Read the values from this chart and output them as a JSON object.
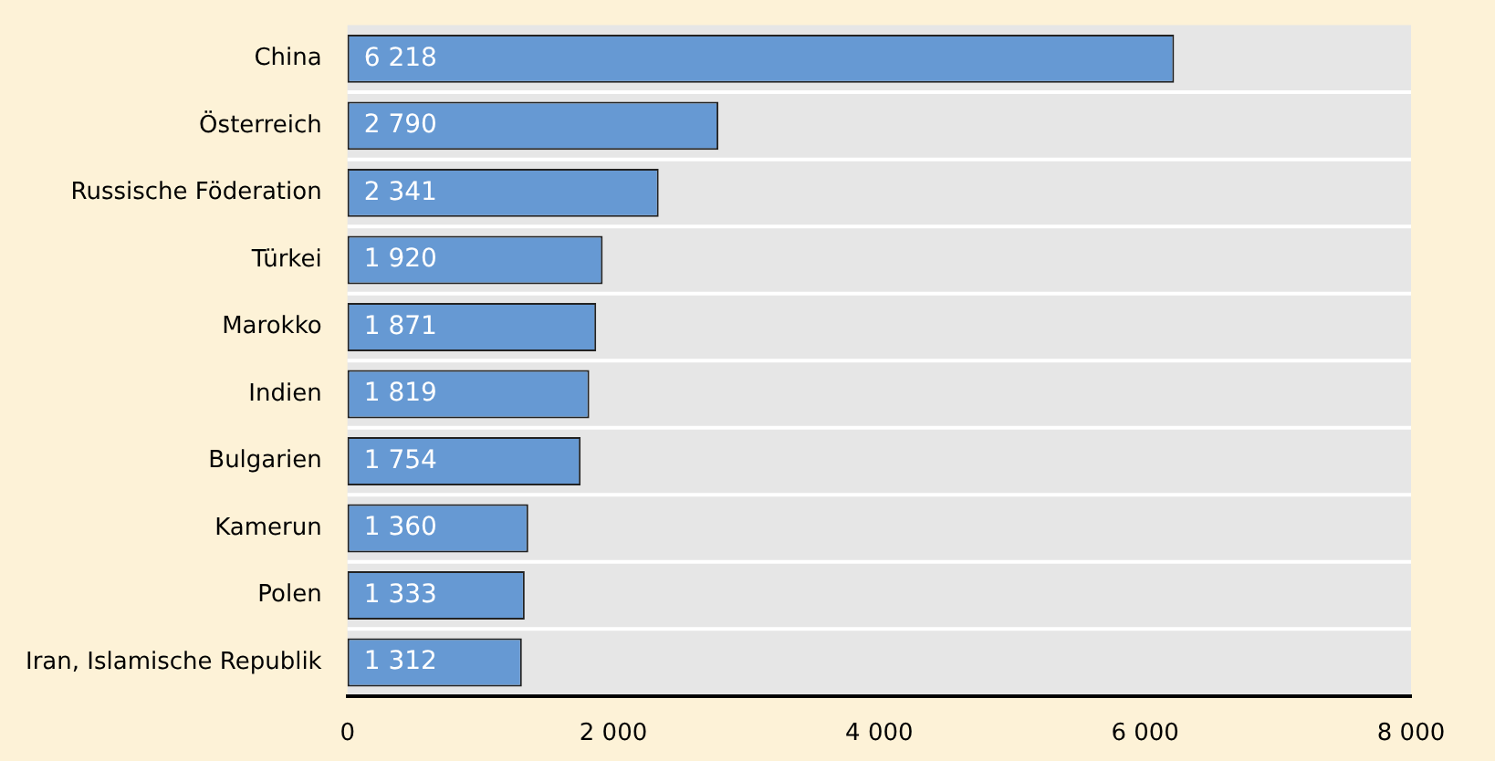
{
  "chart_data": {
    "type": "bar",
    "orientation": "horizontal",
    "categories": [
      "China",
      "Österreich",
      "Russische Föderation",
      "Türkei",
      "Marokko",
      "Indien",
      "Bulgarien",
      "Kamerun",
      "Polen",
      "Iran, Islamische Republik"
    ],
    "values": [
      6218,
      2790,
      2341,
      1920,
      1871,
      1819,
      1754,
      1360,
      1333,
      1312
    ],
    "value_labels": [
      "6 218",
      "2 790",
      "2 341",
      "1 920",
      "1 871",
      "1 819",
      "1 754",
      "1 360",
      "1 333",
      "1 312"
    ],
    "color": "#6699d3",
    "xlim": [
      0,
      8000
    ],
    "xticks": [
      0,
      {
        "value": 2000,
        "label": "2 000"
      },
      {
        "value": 4000,
        "label": "4 000"
      },
      {
        "value": 6000,
        "label": "6 000"
      },
      {
        "value": 8000,
        "label": "8 000"
      }
    ],
    "grid": false,
    "legend": false
  }
}
